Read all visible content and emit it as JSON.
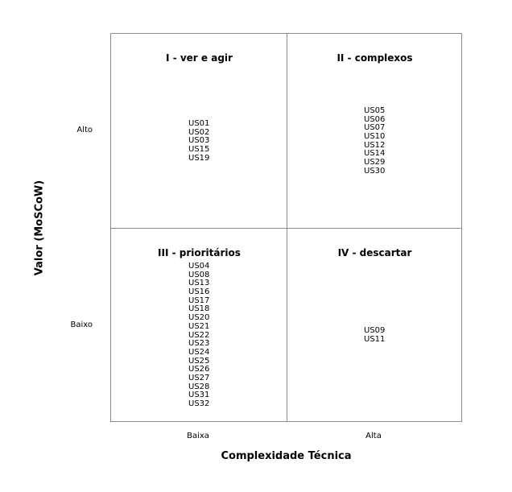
{
  "quadrants": [
    {
      "title": "I - ver e agir",
      "items": [
        "US01",
        "US02",
        "US03",
        "US15",
        "US19"
      ]
    },
    {
      "title": "II - complexos",
      "items": [
        "US05",
        "US06",
        "US07",
        "US10",
        "US12",
        "US14",
        "US29",
        "US30"
      ]
    },
    {
      "title": "III - prioritários",
      "items": [
        "US04",
        "US08",
        "US13",
        "US16",
        "US17",
        "US18",
        "US20",
        "US21",
        "US22",
        "US23",
        "US24",
        "US25",
        "US26",
        "US27",
        "US28",
        "US31",
        "US32"
      ]
    },
    {
      "title": "IV - descartar",
      "items": [
        "US09",
        "US11"
      ]
    }
  ],
  "rows": {
    "high": "Alto",
    "low": "Baixo"
  },
  "columns": {
    "low": "Baixa",
    "high": "Alta"
  },
  "x_axis_label": "Complexidade Técnica",
  "y_axis_label": "Valor (MoSCoW)"
}
